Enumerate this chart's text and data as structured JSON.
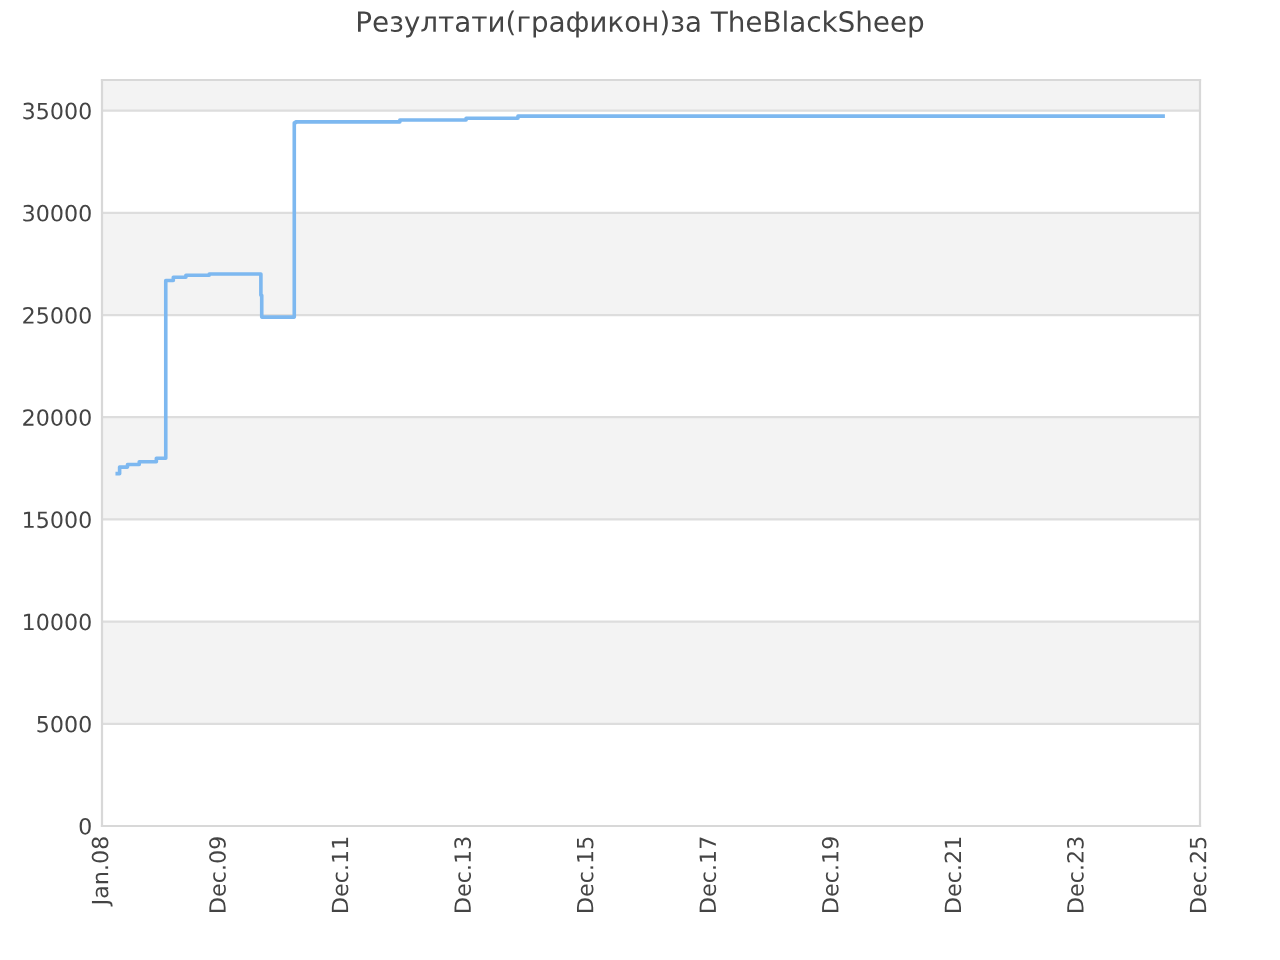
{
  "chart_data": {
    "type": "step",
    "title": "Резултати(графикон)за TheBlackSheep",
    "series": [
      {
        "color": "#7db8f0",
        "x": [
          "2008-04-01",
          "2008-04-15",
          "2008-06-01",
          "2008-08-10",
          "2008-11-20",
          "2009-01-10",
          "2009-01-15",
          "2009-03-01",
          "2009-05-15",
          "2009-10-01",
          "2010-08-01",
          "2010-08-05",
          "2010-08-10",
          "2010-12-05",
          "2011-02-20",
          "2011-03-01",
          "2012-11-10",
          "2013-12-10",
          "2014-10-15",
          "2025-04-25"
        ],
        "values": [
          17240,
          17560,
          17690,
          17820,
          17990,
          17990,
          26690,
          26850,
          26950,
          27010,
          27010,
          25970,
          24900,
          24900,
          34410,
          34450,
          34540,
          34630,
          34730,
          34730
        ]
      }
    ],
    "xlim": [
      "2008-01-01",
      "2025-12-01"
    ],
    "xticks": [
      {
        "value": "2008-01-01",
        "label": "Jan.08"
      },
      {
        "value": "2009-12-01",
        "label": "Dec.09"
      },
      {
        "value": "2011-12-01",
        "label": "Dec.11"
      },
      {
        "value": "2013-12-01",
        "label": "Dec.13"
      },
      {
        "value": "2015-12-01",
        "label": "Dec.15"
      },
      {
        "value": "2017-12-01",
        "label": "Dec.17"
      },
      {
        "value": "2019-12-01",
        "label": "Dec.19"
      },
      {
        "value": "2021-12-01",
        "label": "Dec.21"
      },
      {
        "value": "2023-12-01",
        "label": "Dec.23"
      },
      {
        "value": "2025-12-01",
        "label": "Dec.25"
      }
    ],
    "ylim": [
      0,
      36500
    ],
    "yticks": [
      0,
      5000,
      10000,
      15000,
      20000,
      25000,
      30000,
      35000
    ],
    "grid": "y"
  }
}
